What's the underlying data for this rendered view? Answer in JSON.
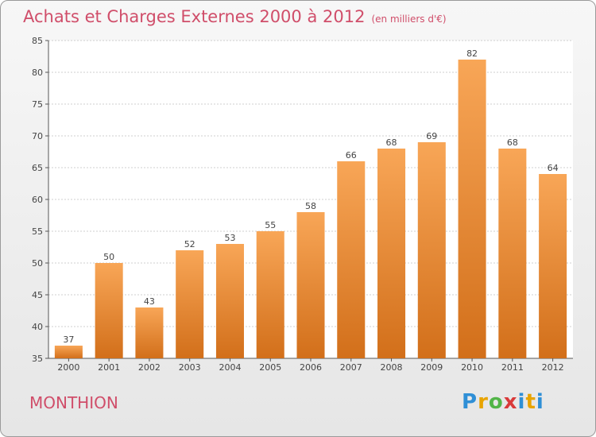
{
  "title": "Achats et Charges Externes 2000 à 2012",
  "subtitle": "(en milliers d'€)",
  "commune": "MONTHION",
  "brand": "Proxiti",
  "colors": {
    "bar_top": "#f8a657",
    "bar_bottom": "#d26f1a",
    "title": "#d04e6a"
  },
  "chart_data": {
    "type": "bar",
    "title": "Achats et Charges Externes 2000 à 2012",
    "subtitle": "(en milliers d'€)",
    "categories": [
      "2000",
      "2001",
      "2002",
      "2003",
      "2004",
      "2005",
      "2006",
      "2007",
      "2008",
      "2009",
      "2010",
      "2011",
      "2012"
    ],
    "values": [
      37,
      50,
      43,
      52,
      53,
      55,
      58,
      66,
      68,
      69,
      82,
      68,
      64
    ],
    "ylim": [
      35,
      85
    ],
    "yticks": [
      35,
      40,
      45,
      50,
      55,
      60,
      65,
      70,
      75,
      80,
      85
    ],
    "grid": true,
    "data_labels": true
  }
}
